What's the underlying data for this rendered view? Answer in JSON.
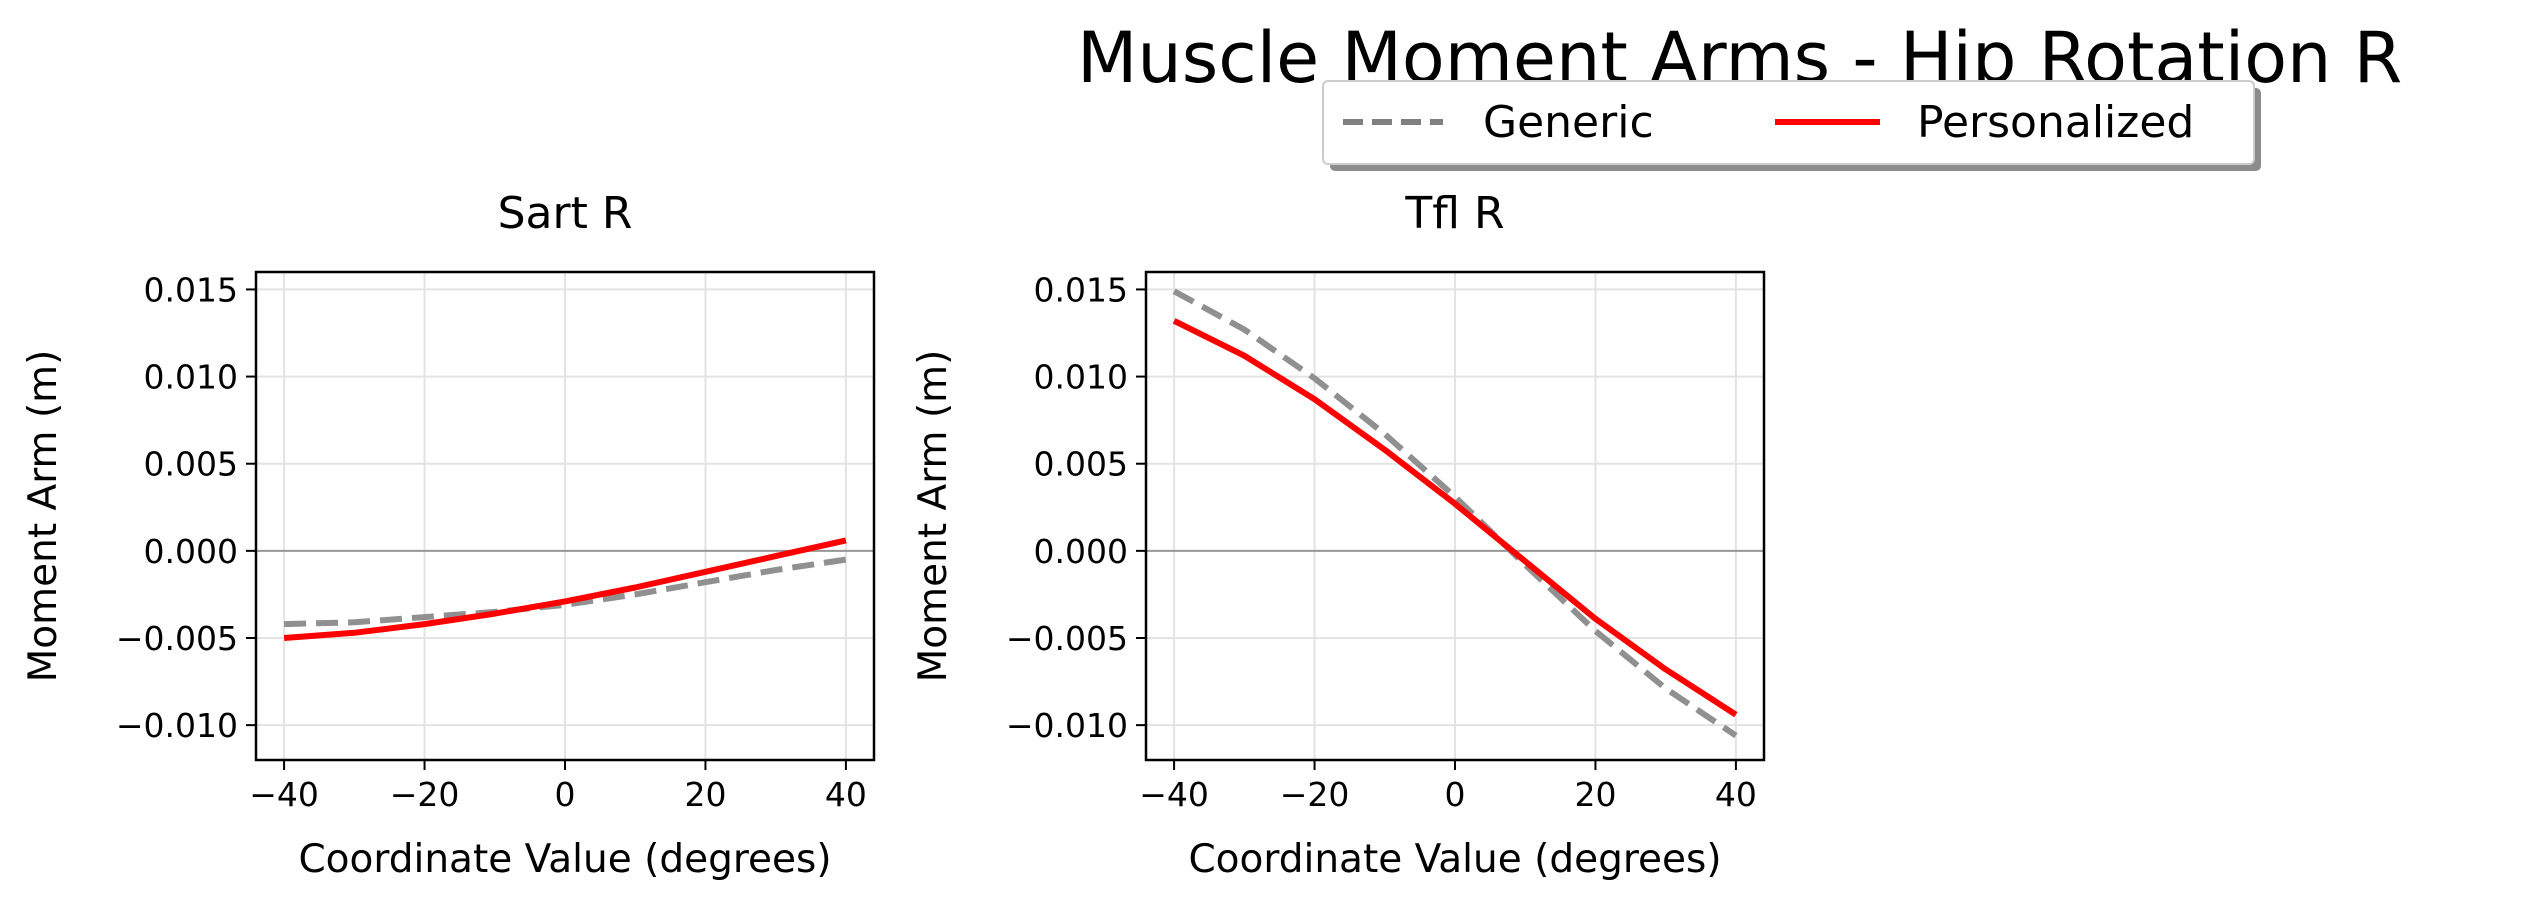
{
  "figure": {
    "title": "Muscle Moment Arms - Hip Rotation R"
  },
  "legend": {
    "placement": "top-center",
    "entries": [
      {
        "label": "Generic",
        "color": "#808080",
        "style": "dashed"
      },
      {
        "label": "Personalized",
        "color": "#ff0000",
        "style": "solid"
      }
    ]
  },
  "chart_data": [
    {
      "type": "line",
      "title": "Sart R",
      "xlabel": "Coordinate Value (degrees)",
      "ylabel": "Moment Arm (m)",
      "xlim": [
        -44,
        44
      ],
      "ylim": [
        -0.012,
        0.016
      ],
      "xticks": [
        "−40",
        "−20",
        "0",
        "20",
        "40"
      ],
      "xtick_values": [
        -40,
        -20,
        0,
        20,
        40
      ],
      "yticks": [
        "0.015",
        "0.010",
        "0.005",
        "0.000",
        "−0.005",
        "−0.010"
      ],
      "ytick_values": [
        0.015,
        0.01,
        0.005,
        0.0,
        -0.005,
        -0.01
      ],
      "grid": true,
      "zero_line": true,
      "series": [
        {
          "name": "Generic",
          "color": "#909090",
          "style": "dashed",
          "x": [
            -40,
            -30,
            -20,
            -10,
            0,
            10,
            20,
            30,
            40
          ],
          "y": [
            -0.0042,
            -0.0041,
            -0.0038,
            -0.0035,
            -0.0031,
            -0.0025,
            -0.0018,
            -0.0011,
            -0.0005
          ]
        },
        {
          "name": "Personalized",
          "color": "#ff0000",
          "style": "solid",
          "x": [
            -40,
            -30,
            -20,
            -10,
            0,
            10,
            20,
            30,
            40
          ],
          "y": [
            -0.005,
            -0.0047,
            -0.0042,
            -0.0036,
            -0.0029,
            -0.0021,
            -0.0012,
            -0.0003,
            0.0006
          ]
        }
      ]
    },
    {
      "type": "line",
      "title": "Tfl R",
      "xlabel": "Coordinate Value (degrees)",
      "ylabel": "Moment Arm (m)",
      "xlim": [
        -44,
        44
      ],
      "ylim": [
        -0.012,
        0.016
      ],
      "xticks": [
        "−40",
        "−20",
        "0",
        "20",
        "40"
      ],
      "xtick_values": [
        -40,
        -20,
        0,
        20,
        40
      ],
      "yticks": [
        "0.015",
        "0.010",
        "0.005",
        "0.000",
        "−0.005",
        "−0.010"
      ],
      "ytick_values": [
        0.015,
        0.01,
        0.005,
        0.0,
        -0.005,
        -0.01
      ],
      "grid": true,
      "zero_line": true,
      "series": [
        {
          "name": "Generic",
          "color": "#909090",
          "style": "dashed",
          "x": [
            -40,
            -30,
            -20,
            -10,
            0,
            10,
            20,
            30,
            40
          ],
          "y": [
            0.0149,
            0.0127,
            0.0099,
            0.0067,
            0.0031,
            -0.0008,
            -0.0046,
            -0.0079,
            -0.0106
          ]
        },
        {
          "name": "Personalized",
          "color": "#ff0000",
          "style": "solid",
          "x": [
            -40,
            -30,
            -20,
            -10,
            0,
            10,
            20,
            30,
            40
          ],
          "y": [
            0.0132,
            0.0112,
            0.0087,
            0.0058,
            0.0027,
            -0.0006,
            -0.0039,
            -0.0068,
            -0.0094
          ]
        }
      ]
    }
  ]
}
